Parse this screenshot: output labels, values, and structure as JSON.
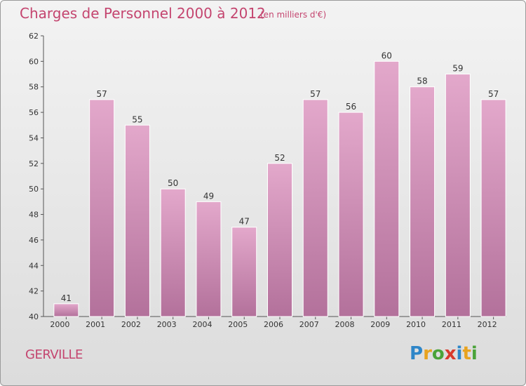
{
  "title": "Charges de Personnel 2000 à 2012",
  "subtitle": "(en milliers d'€)",
  "commune": "GERVILLE",
  "logo": {
    "text": "Proxiti",
    "letter_colors": [
      "#2e86c8",
      "#e8a31f",
      "#4aa339",
      "#d83a2c",
      "#2e86c8",
      "#e8a31f",
      "#4aa339"
    ]
  },
  "colors": {
    "bar_light": "#e3a8cb",
    "bar_dark": "#b3719b",
    "text_accent": "#c4456f"
  },
  "chart_data": {
    "type": "bar",
    "title": "Charges de Personnel 2000 à 2012",
    "subtitle": "(en milliers d'€)",
    "categories": [
      "2000",
      "2001",
      "2002",
      "2003",
      "2004",
      "2005",
      "2006",
      "2007",
      "2008",
      "2009",
      "2010",
      "2011",
      "2012"
    ],
    "values": [
      41,
      57,
      55,
      50,
      49,
      47,
      52,
      57,
      56,
      60,
      58,
      59,
      57
    ],
    "data_labels": [
      "41",
      "57",
      "55",
      "50",
      "49",
      "47",
      "52",
      "57",
      "56",
      "60",
      "58",
      "59",
      "57"
    ],
    "ylim": [
      40,
      62
    ],
    "yticks": [
      40,
      42,
      44,
      46,
      48,
      50,
      52,
      54,
      56,
      58,
      60,
      62
    ],
    "ytick_labels": [
      "40",
      "42",
      "44",
      "46",
      "48",
      "50",
      "52",
      "54",
      "56",
      "58",
      "60",
      "62"
    ],
    "grid": false,
    "legend": "none"
  }
}
